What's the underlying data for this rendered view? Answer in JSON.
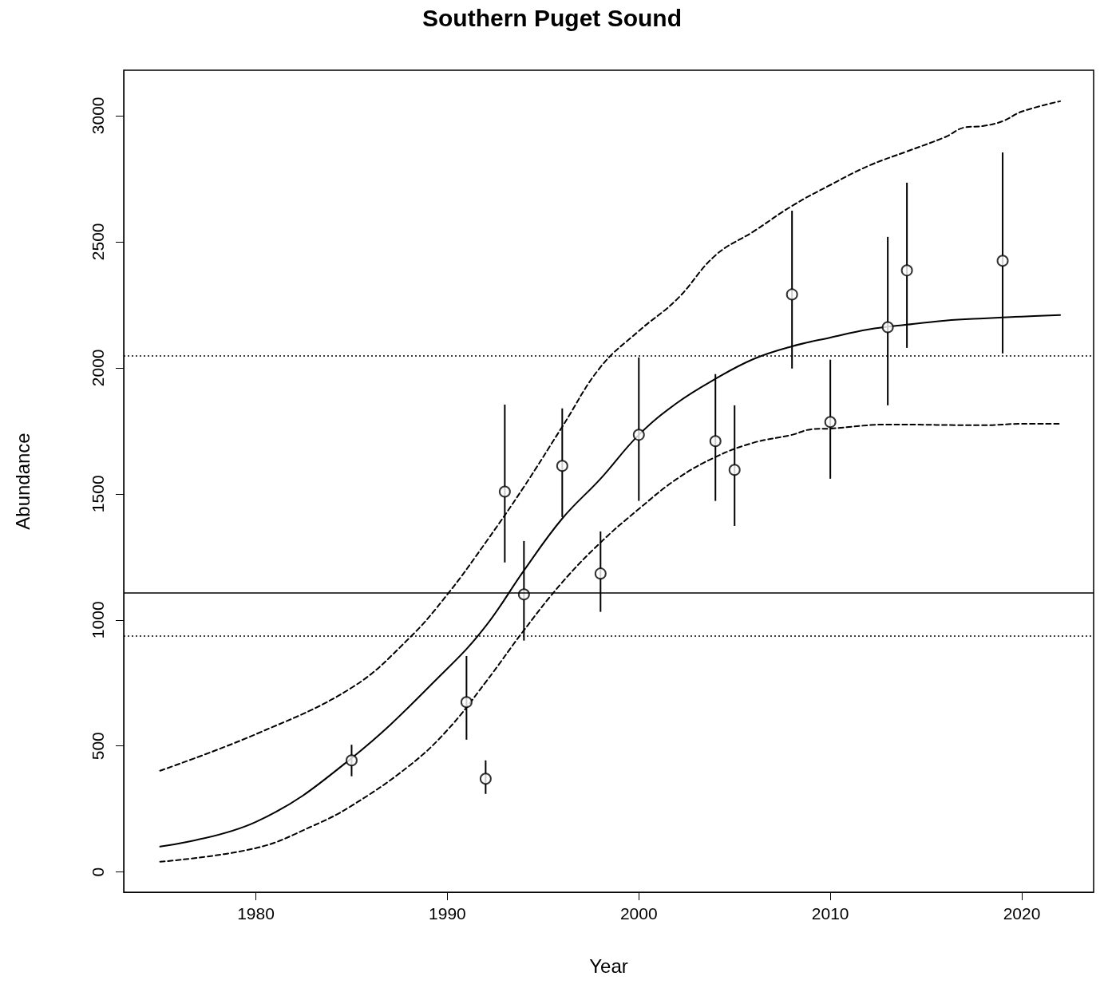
{
  "chart_data": {
    "type": "scatter",
    "title": "Southern Puget Sound",
    "xlabel": "Year",
    "ylabel": "Abundance",
    "xlim": [
      1973.1,
      2023.75
    ],
    "xticks": [
      1980,
      1990,
      2000,
      2010,
      2020
    ],
    "ylim": [
      -80,
      3180
    ],
    "yticks": [
      0,
      500,
      1000,
      1500,
      2000,
      2500,
      3000
    ],
    "grid": false,
    "series": [
      {
        "color": "#000000",
        "marker": "circle",
        "x": [
          1985,
          1991,
          1992,
          1993,
          1994,
          1996,
          1998,
          2000,
          2004,
          2005,
          2008,
          2010,
          2013,
          2014,
          2019
        ],
        "values": [
          443,
          674,
          370,
          1509,
          1101,
          1611,
          1184,
          1734,
          1709,
          1595,
          2291,
          1785,
          2161,
          2386,
          2424
        ],
        "errors": [
          [
            380,
            505
          ],
          [
            525,
            857
          ],
          [
            310,
            443
          ],
          [
            1228,
            1854
          ],
          [
            918,
            1313
          ],
          [
            1408,
            1839
          ],
          [
            1032,
            1351
          ],
          [
            1472,
            2041
          ],
          [
            1472,
            1975
          ],
          [
            1373,
            1851
          ],
          [
            1997,
            2623
          ],
          [
            1560,
            2032
          ],
          [
            1851,
            2519
          ],
          [
            2079,
            2734
          ],
          [
            2057,
            2854
          ]
        ]
      },
      {
        "type": "line",
        "color": "#000000",
        "marker": "none",
        "line_style": "solid",
        "x": [
          1975,
          1980,
          1985,
          1990,
          1992,
          1994,
          1996,
          1998,
          2000,
          2002,
          2004,
          2006,
          2008,
          2010,
          2012,
          2014,
          2016,
          2018,
          2020,
          2022
        ],
        "values": [
          101,
          199,
          452,
          807,
          975,
          1196,
          1402,
          1560,
          1734,
          1861,
          1956,
          2035,
          2085,
          2120,
          2152,
          2171,
          2187,
          2196,
          2203,
          2209
        ]
      },
      {
        "type": "line",
        "color": "#000000",
        "marker": "none",
        "line_style": "dashed",
        "x": [
          1975,
          1980,
          1985,
          1988,
          1990,
          1992,
          1994,
          1996,
          1998,
          2000,
          2002,
          2004,
          2006,
          2008,
          2010,
          2012,
          2014,
          2016,
          2017,
          2018,
          2019,
          2020,
          2022
        ],
        "values": [
          402,
          547,
          731,
          927,
          1101,
          1307,
          1528,
          1766,
          2003,
          2146,
          2272,
          2446,
          2541,
          2642,
          2725,
          2801,
          2858,
          2915,
          2953,
          2959,
          2978,
          3016,
          3057
        ]
      },
      {
        "type": "line",
        "color": "#000000",
        "marker": "none",
        "line_style": "dashed",
        "x": [
          1975,
          1980,
          1983,
          1985,
          1988,
          1990,
          1992,
          1994,
          1996,
          1998,
          2000,
          2002,
          2004,
          2006,
          2008,
          2009,
          2010,
          2013,
          2018,
          2020,
          2022
        ],
        "values": [
          41,
          95,
          184,
          263,
          421,
          563,
          753,
          959,
          1149,
          1307,
          1440,
          1560,
          1646,
          1703,
          1734,
          1756,
          1759,
          1775,
          1772,
          1778,
          1778
        ]
      }
    ],
    "ref_lines": [
      {
        "axis": "y",
        "value": 2047,
        "line_style": "dotted",
        "color": "#000000"
      },
      {
        "axis": "y",
        "value": 1108,
        "line_style": "solid",
        "color": "#000000"
      },
      {
        "axis": "y",
        "value": 937,
        "line_style": "dotted",
        "color": "#000000"
      }
    ]
  }
}
